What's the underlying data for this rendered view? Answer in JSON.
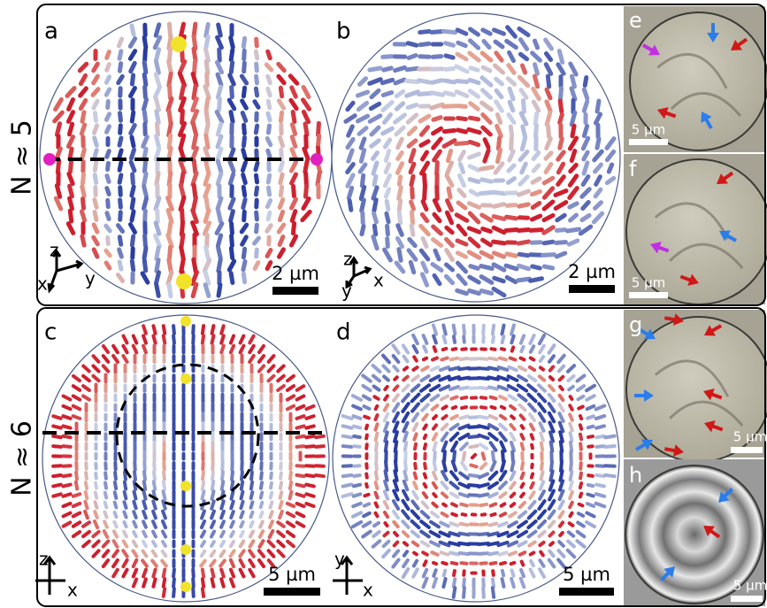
{
  "rows": [
    {
      "label": "N ≈ 5",
      "panels": [
        {
          "label": "a",
          "axes": [
            "z",
            "x",
            "y"
          ],
          "scale_bar": "2 µm"
        },
        {
          "label": "b",
          "axes": [
            "z",
            "y",
            "x"
          ],
          "scale_bar": "2 µm"
        },
        {
          "label": "e",
          "scale_bar": "5 µm"
        },
        {
          "label": "f",
          "scale_bar": "5 µm"
        }
      ]
    },
    {
      "label": "N ≈ 6",
      "panels": [
        {
          "label": "c",
          "axes": [
            "z",
            "x"
          ],
          "scale_bar": "5 µm"
        },
        {
          "label": "d",
          "axes": [
            "y",
            "x"
          ],
          "scale_bar": "5 µm"
        },
        {
          "label": "g",
          "scale_bar": "5 µm"
        },
        {
          "label": "h",
          "scale_bar": "5 µm"
        }
      ]
    }
  ]
}
